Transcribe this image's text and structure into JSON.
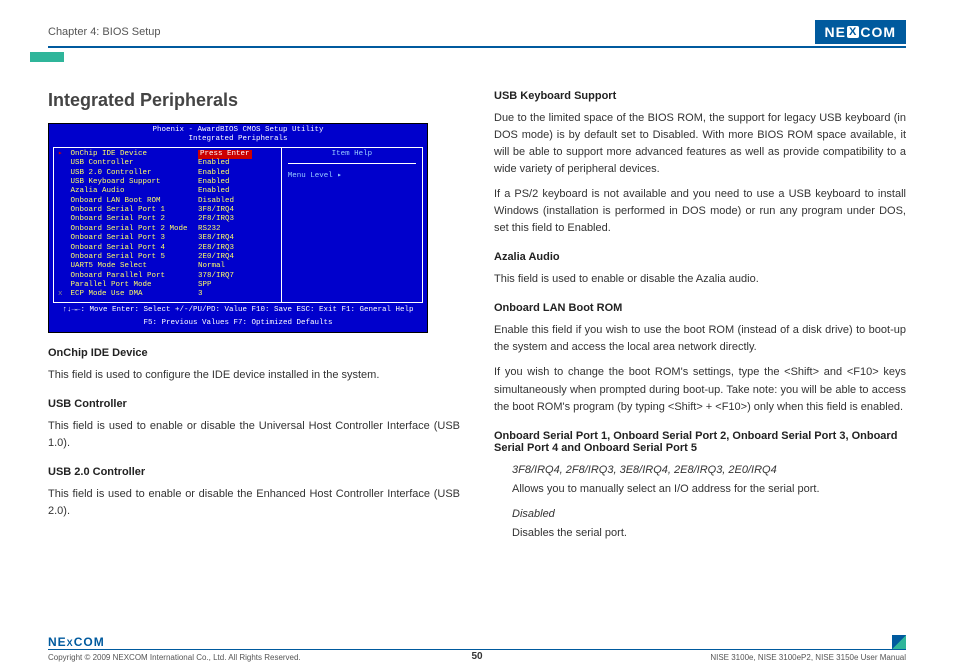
{
  "header": {
    "chapter": "Chapter 4: BIOS Setup",
    "logo_text_prefix": "NE",
    "logo_text_x": "X",
    "logo_text_suffix": "COM"
  },
  "section_title": "Integrated Peripherals",
  "bios": {
    "title1": "Phoenix - AwardBIOS CMOS Setup Utility",
    "title2": "Integrated Peripherals",
    "rows": [
      {
        "key": "OnChip IDE Device",
        "val": "Press Enter",
        "enter": true,
        "arrow": true
      },
      {
        "key": "USB Controller",
        "val": "Enabled"
      },
      {
        "key": "USB 2.0 Controller",
        "val": "Enabled"
      },
      {
        "key": "USB Keyboard Support",
        "val": "Enabled"
      },
      {
        "key": "Azalia Audio",
        "val": "Enabled"
      },
      {
        "key": "Onboard LAN Boot ROM",
        "val": "Disabled"
      },
      {
        "key": "Onboard Serial Port 1",
        "val": "3F8/IRQ4"
      },
      {
        "key": "Onboard Serial Port 2",
        "val": "2F8/IRQ3"
      },
      {
        "key": "Onboard Serial Port 2 Mode",
        "val": "RS232"
      },
      {
        "key": "Onboard Serial Port 3",
        "val": "3E8/IRQ4"
      },
      {
        "key": "Onboard Serial Port 4",
        "val": "2E8/IRQ3"
      },
      {
        "key": "Onboard Serial Port 5",
        "val": "2E0/IRQ4"
      },
      {
        "key": "UART5 Mode Select",
        "val": "Normal"
      },
      {
        "key": "Onboard Parallel Port",
        "val": "378/IRQ7"
      },
      {
        "key": "Parallel Port Mode",
        "val": "SPP"
      },
      {
        "key": "ECP Mode Use DMA",
        "val": "3",
        "prefix_x": true
      }
    ],
    "help_title": "Item Help",
    "menu_level": "Menu Level     ▸",
    "footer1": "↑↓→←: Move     Enter: Select     +/-/PU/PD: Value     F10: Save     ESC: Exit     F1: General Help",
    "footer2": "F5: Previous Values                              F7: Optimized Defaults"
  },
  "left_col": {
    "h1": "OnChip IDE Device",
    "p1": "This field is used to configure the IDE device installed in the system.",
    "h2": "USB Controller",
    "p2": "This field is used to enable or disable the Universal Host Controller Interface (USB 1.0).",
    "h3": "USB 2.0 Controller",
    "p3": "This field is used to enable or disable the Enhanced Host Controller Interface (USB 2.0)."
  },
  "right_col": {
    "h1": "USB Keyboard Support",
    "p1": "Due to the limited space of the BIOS ROM, the support for legacy USB keyboard (in DOS mode) is by default set to Disabled. With more BIOS ROM space available, it will be able to support more advanced features as well as provide compatibility to a wide variety of peripheral devices.",
    "p1b": "If a PS/2 keyboard is not available and you need to use a USB keyboard to install Windows (installation is performed in DOS mode) or run any program under DOS, set this field to Enabled.",
    "h2": "Azalia Audio",
    "p2": "This field is used to enable or disable the Azalia audio.",
    "h3": "Onboard LAN Boot ROM",
    "p3": "Enable this field if you wish to use the boot ROM (instead of a disk drive) to boot-up the system and access the local area network directly.",
    "p3b": "If you wish to change the boot ROM's settings, type the <Shift> and <F10> keys simultaneously when prompted during boot-up. Take note: you will be able to access the boot ROM's program (by typing <Shift> + <F10>) only when this field is enabled.",
    "h4": "Onboard Serial Port 1, Onboard Serial Port 2, Onboard Serial Port 3, Onboard Serial Port 4 and Onboard Serial Port 5",
    "opt1": "3F8/IRQ4, 2F8/IRQ3, 3E8/IRQ4, 2E8/IRQ3, 2E0/IRQ4",
    "opt1d": "Allows you to manually select an I/O address for the serial port.",
    "opt2": "Disabled",
    "opt2d": "Disables the serial port."
  },
  "footer": {
    "copyright": "Copyright © 2009 NEXCOM International Co., Ltd. All Rights Reserved.",
    "page": "50",
    "manual": "NISE 3100e, NISE 3100eP2, NISE 3150e User Manual"
  }
}
